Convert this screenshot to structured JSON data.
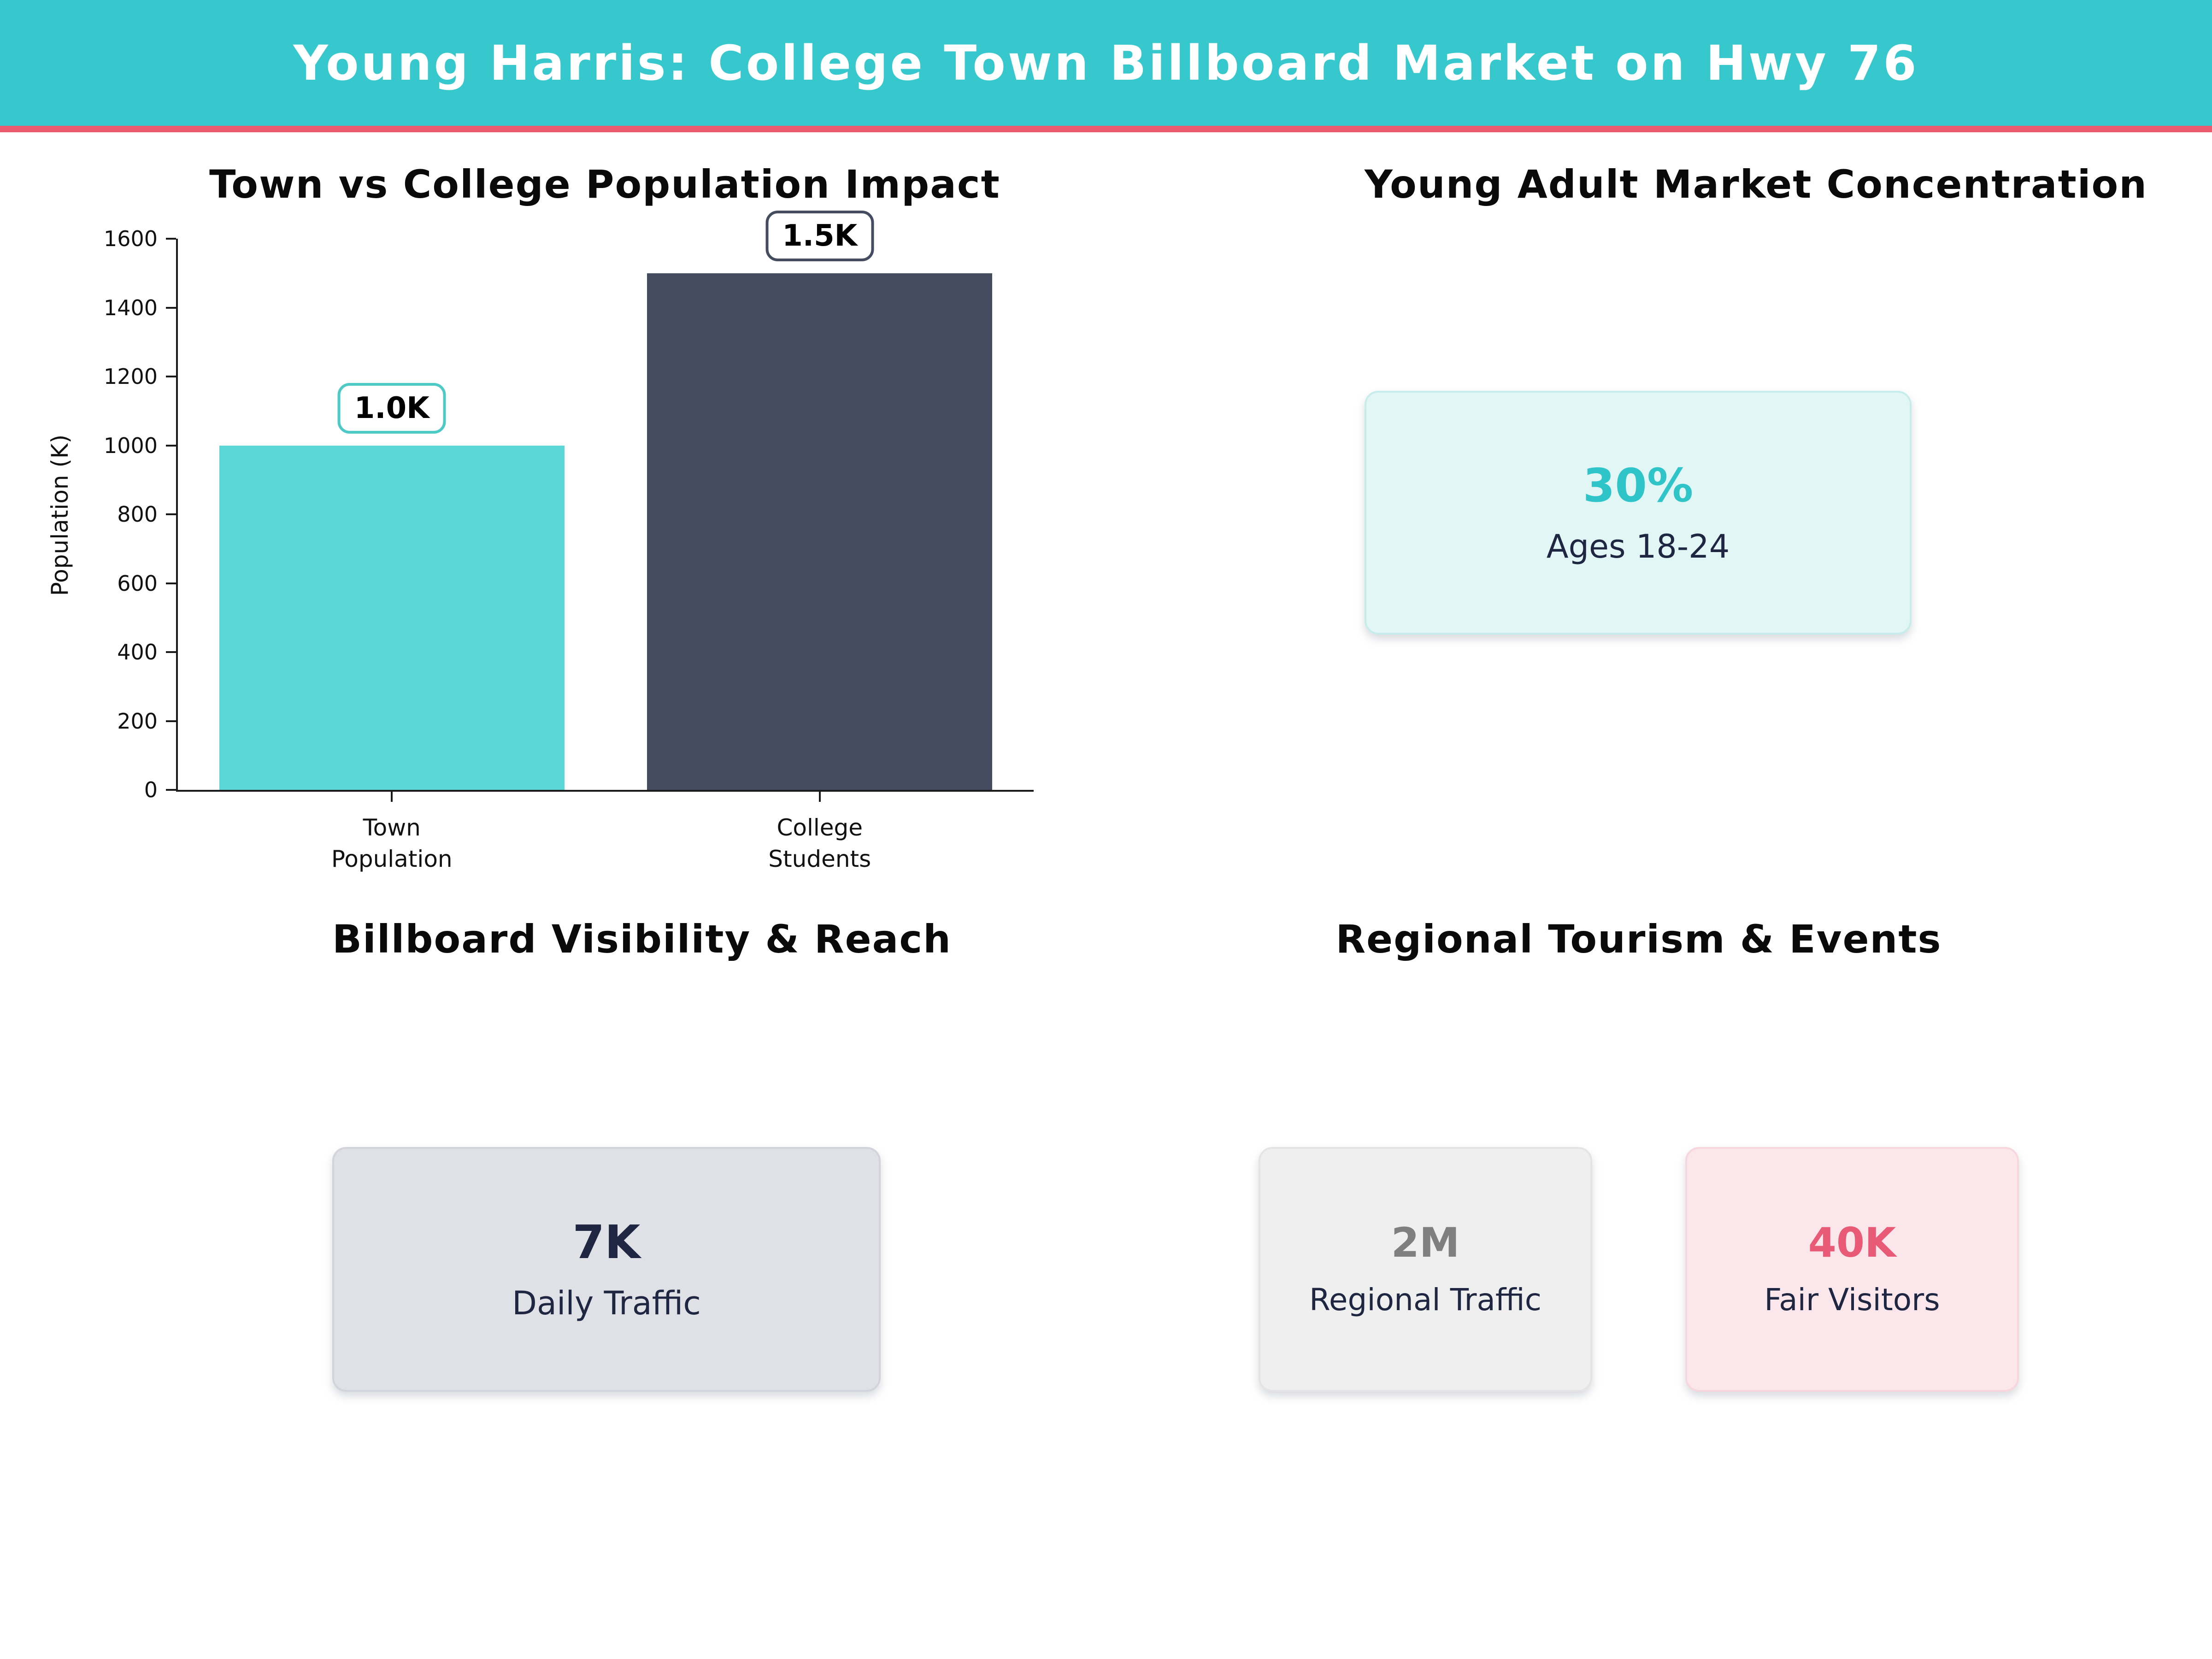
{
  "header": {
    "title": "Young Harris: College Town Billboard Market on Hwy 76",
    "bg_color": "#36C8CC",
    "accent_line_color": "#EA5B70"
  },
  "chart_data": [
    {
      "type": "bar",
      "title": "Town vs College Population Impact",
      "xlabel": "",
      "ylabel": "Population (K)",
      "ylim": [
        0,
        1600
      ],
      "yticks": [
        0,
        200,
        400,
        600,
        800,
        1000,
        1200,
        1400,
        1600
      ],
      "categories": [
        "Town Population",
        "College Students"
      ],
      "category_lines": [
        [
          "Town",
          "Population"
        ],
        [
          "College",
          "Students"
        ]
      ],
      "values": [
        1000,
        1500
      ],
      "value_labels": [
        "1.0K",
        "1.5K"
      ],
      "bar_colors": [
        "#5CD6D6",
        "#454C5F"
      ],
      "value_label_border_colors": [
        "#4DC9C6",
        "#454C5F"
      ],
      "grid": false,
      "legend_position": "none"
    },
    {
      "type": "stat",
      "title": "Young Adult Market Concentration",
      "value": "30%",
      "label": "Ages 18-24",
      "value_color": "#2FC4C8",
      "label_color": "#1F2642",
      "box_bg": "#E3F6F6",
      "box_border": "#C6ECEC"
    },
    {
      "type": "stat",
      "title": "Billboard Visibility & Reach",
      "value": "7K",
      "label": "Daily Traffic",
      "value_color": "#1F2642",
      "label_color": "#1F2642",
      "box_bg": "#E0E1E6",
      "box_border": "#D3D4DB"
    },
    {
      "type": "stat-group",
      "title": "Regional Tourism & Events",
      "stats": [
        {
          "value": "2M",
          "label": "Regional Traffic",
          "value_color": "#7F7F7F",
          "label_color": "#1F2642",
          "box_bg": "#EFEFEF",
          "box_border": "#E4E4E4"
        },
        {
          "value": "40K",
          "label": "Fair Visitors",
          "value_color": "#E85A76",
          "label_color": "#1F2642",
          "box_bg": "#FBE7EB",
          "box_border": "#F8D6DD"
        }
      ]
    }
  ]
}
